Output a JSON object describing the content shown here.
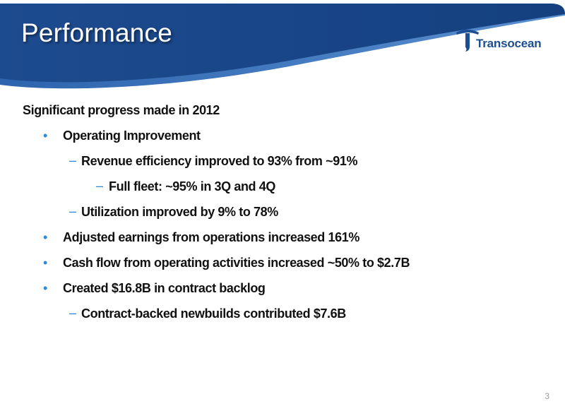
{
  "header": {
    "title": "Performance",
    "logo_text": "Transocean",
    "colors": {
      "band": "#1d4b8f",
      "band_light": "#3f78c2",
      "logo": "#1b4f91",
      "bullet": "#2e88d8"
    }
  },
  "body": {
    "heading": "Significant progress made in 2012",
    "items": [
      {
        "text": "Operating Improvement"
      },
      {
        "text": "Revenue efficiency improved to 93% from ~91%"
      },
      {
        "text": "Full fleet: ~95% in 3Q and 4Q"
      },
      {
        "text": "Utilization improved by 9% to 78%"
      },
      {
        "text": "Adjusted earnings from operations increased 161%"
      },
      {
        "text": "Cash flow from operating activities increased ~50% to $2.7B"
      },
      {
        "text": "Created $16.8B in contract backlog"
      },
      {
        "text": "Contract-backed newbuilds contributed $7.6B"
      }
    ]
  },
  "footer": {
    "page_number": "3"
  }
}
